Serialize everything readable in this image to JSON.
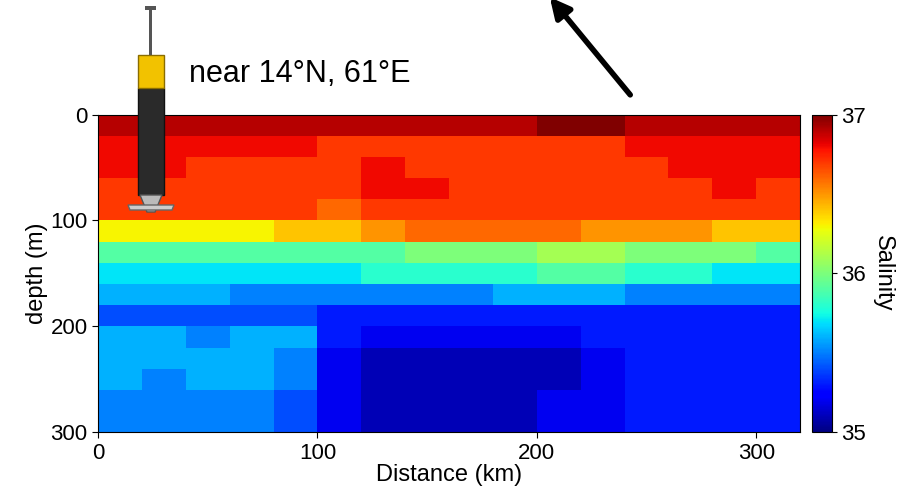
{
  "chart_data": {
    "type": "heatmap",
    "title": "near 14°N, 61°E",
    "x_label": "Distance (km)",
    "y_label": "depth (m)",
    "x": [
      10,
      30,
      50,
      70,
      90,
      110,
      130,
      150,
      170,
      190,
      210,
      230,
      250,
      270,
      290,
      310
    ],
    "y": [
      10,
      30,
      50,
      70,
      90,
      110,
      130,
      150,
      170,
      190,
      210,
      230,
      250,
      270,
      290
    ],
    "cells": [
      [
        36.9,
        36.9,
        36.9,
        36.9,
        36.9,
        36.9,
        36.9,
        36.9,
        36.9,
        36.9,
        37.0,
        37.0,
        36.9,
        36.9,
        36.9,
        36.9
      ],
      [
        36.8,
        36.8,
        36.8,
        36.8,
        36.8,
        36.7,
        36.7,
        36.7,
        36.7,
        36.7,
        36.7,
        36.7,
        36.8,
        36.8,
        36.8,
        36.8
      ],
      [
        36.8,
        36.8,
        36.7,
        36.7,
        36.7,
        36.7,
        36.8,
        36.7,
        36.7,
        36.7,
        36.7,
        36.7,
        36.7,
        36.8,
        36.8,
        36.8
      ],
      [
        36.7,
        36.7,
        36.7,
        36.7,
        36.7,
        36.7,
        36.8,
        36.8,
        36.7,
        36.7,
        36.7,
        36.7,
        36.7,
        36.7,
        36.8,
        36.7
      ],
      [
        36.7,
        36.7,
        36.7,
        36.7,
        36.7,
        36.6,
        36.7,
        36.7,
        36.7,
        36.7,
        36.7,
        36.7,
        36.7,
        36.7,
        36.7,
        36.7
      ],
      [
        36.3,
        36.3,
        36.3,
        36.3,
        36.4,
        36.4,
        36.5,
        36.6,
        36.6,
        36.6,
        36.6,
        36.5,
        36.5,
        36.5,
        36.4,
        36.4
      ],
      [
        35.9,
        35.9,
        35.9,
        35.9,
        35.9,
        35.9,
        35.9,
        36.0,
        36.0,
        36.0,
        36.1,
        36.1,
        36.0,
        36.0,
        36.0,
        35.9
      ],
      [
        35.7,
        35.7,
        35.7,
        35.7,
        35.7,
        35.7,
        35.8,
        35.8,
        35.8,
        35.8,
        35.9,
        35.9,
        35.8,
        35.8,
        35.7,
        35.7
      ],
      [
        35.6,
        35.6,
        35.6,
        35.5,
        35.5,
        35.5,
        35.5,
        35.5,
        35.5,
        35.6,
        35.6,
        35.6,
        35.5,
        35.5,
        35.5,
        35.5
      ],
      [
        35.4,
        35.4,
        35.4,
        35.4,
        35.4,
        35.3,
        35.3,
        35.3,
        35.3,
        35.3,
        35.3,
        35.3,
        35.3,
        35.3,
        35.3,
        35.3
      ],
      [
        35.6,
        35.6,
        35.5,
        35.6,
        35.6,
        35.3,
        35.2,
        35.2,
        35.2,
        35.2,
        35.2,
        35.3,
        35.3,
        35.3,
        35.3,
        35.3
      ],
      [
        35.6,
        35.6,
        35.6,
        35.6,
        35.5,
        35.2,
        35.1,
        35.1,
        35.1,
        35.1,
        35.1,
        35.2,
        35.3,
        35.3,
        35.3,
        35.3
      ],
      [
        35.6,
        35.5,
        35.6,
        35.6,
        35.5,
        35.2,
        35.1,
        35.1,
        35.1,
        35.1,
        35.1,
        35.2,
        35.3,
        35.3,
        35.3,
        35.3
      ],
      [
        35.5,
        35.5,
        35.5,
        35.5,
        35.4,
        35.2,
        35.1,
        35.1,
        35.1,
        35.1,
        35.2,
        35.2,
        35.3,
        35.3,
        35.3,
        35.3
      ],
      [
        35.5,
        35.5,
        35.5,
        35.5,
        35.4,
        35.2,
        35.1,
        35.1,
        35.1,
        35.1,
        35.2,
        35.2,
        35.3,
        35.3,
        35.3,
        35.3
      ]
    ],
    "xlim": [
      0,
      320
    ],
    "xticks": [
      0,
      100,
      200,
      300
    ],
    "ylim": [
      300,
      0
    ],
    "yticks": [
      0,
      100,
      200,
      300
    ],
    "colorbar": {
      "label": "Salinity",
      "range": [
        35,
        37
      ],
      "ticks": [
        35,
        36,
        37
      ]
    }
  }
}
